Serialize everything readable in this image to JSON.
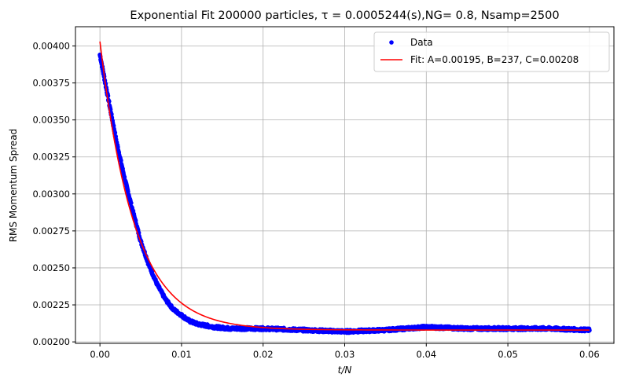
{
  "chart_data": {
    "type": "scatter",
    "title": "Exponential Fit 200000 particles, τ = 0.0005244(s),NG= 0.8, Nsamp=2500",
    "xlabel": "t/N",
    "ylabel": "RMS Momentum Spread",
    "xlim": [
      -0.003,
      0.063
    ],
    "ylim": [
      0.00199,
      0.00413
    ],
    "x_ticks": [
      "0.00",
      "0.01",
      "0.02",
      "0.03",
      "0.04",
      "0.05",
      "0.06"
    ],
    "y_ticks": [
      "0.00200",
      "0.00225",
      "0.00250",
      "0.00275",
      "0.00300",
      "0.00325",
      "0.00350",
      "0.00375",
      "0.00400"
    ],
    "grid": true,
    "legend_position": "top-right",
    "series": [
      {
        "name": "Data",
        "kind": "scatter",
        "color": "#0000ff",
        "x_start": 0.0,
        "x_end": 0.06,
        "points": [
          [
            0.0,
            0.00394
          ],
          [
            0.001,
            0.00365
          ],
          [
            0.002,
            0.00336
          ],
          [
            0.003,
            0.00311
          ],
          [
            0.004,
            0.00289
          ],
          [
            0.005,
            0.00268
          ],
          [
            0.006,
            0.00252
          ],
          [
            0.007,
            0.00239
          ],
          [
            0.008,
            0.00229
          ],
          [
            0.009,
            0.00222
          ],
          [
            0.01,
            0.00218
          ],
          [
            0.011,
            0.00214
          ],
          [
            0.012,
            0.00212
          ],
          [
            0.013,
            0.00211
          ],
          [
            0.014,
            0.0021
          ],
          [
            0.016,
            0.00209
          ],
          [
            0.02,
            0.00209
          ],
          [
            0.025,
            0.00208
          ],
          [
            0.03,
            0.00207
          ],
          [
            0.035,
            0.00208
          ],
          [
            0.04,
            0.0021
          ],
          [
            0.045,
            0.00209
          ],
          [
            0.05,
            0.00209
          ],
          [
            0.055,
            0.00209
          ],
          [
            0.06,
            0.00208
          ]
        ]
      },
      {
        "name": "Fit: A=0.00195, B=237, C=0.00208",
        "kind": "line",
        "color": "#ff0000",
        "model": "A*exp(-B*x)+C",
        "A": 0.00195,
        "B": 237,
        "C": 0.00208,
        "x_start": 0.0,
        "x_end": 0.06
      }
    ]
  }
}
